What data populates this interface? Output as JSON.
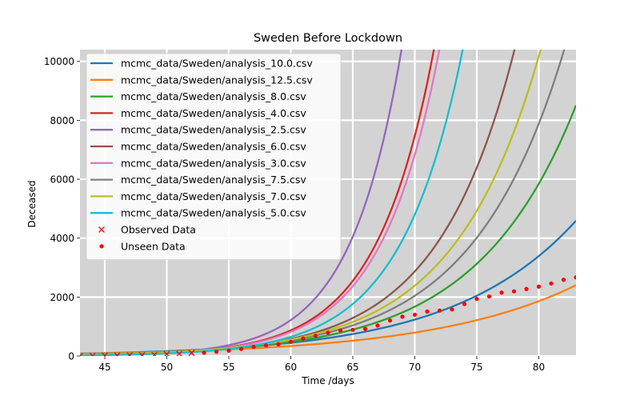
{
  "chart_data": {
    "type": "line",
    "title": "Sweden Before Lockdown",
    "xlabel": "Time /days",
    "ylabel": "Deceased",
    "xlim": [
      43,
      83
    ],
    "ylim": [
      0,
      10400
    ],
    "xticks": [
      45,
      50,
      55,
      60,
      65,
      70,
      75,
      80
    ],
    "yticks": [
      0,
      2000,
      4000,
      6000,
      8000,
      10000
    ],
    "grid": true,
    "background": "#d3d3d3",
    "legend_position": "top-left",
    "series": [
      {
        "name": "mcmc_data/Sweden/analysis_10.0.csv",
        "color": "#1f77b4",
        "k": 0.101
      },
      {
        "name": "mcmc_data/Sweden/analysis_12.5.csv",
        "color": "#ff7f0e",
        "k": 0.085
      },
      {
        "name": "mcmc_data/Sweden/analysis_8.0.csv",
        "color": "#2ca02c",
        "k": 0.125
      },
      {
        "name": "mcmc_data/Sweden/analysis_4.0.csv",
        "color": "#d62728",
        "k": 0.215
      },
      {
        "name": "mcmc_data/Sweden/analysis_2.5.csv",
        "color": "#9467bd",
        "k": 0.24
      },
      {
        "name": "mcmc_data/Sweden/analysis_6.0.csv",
        "color": "#8c564b",
        "k": 0.16
      },
      {
        "name": "mcmc_data/Sweden/analysis_3.0.csv",
        "color": "#e377c2",
        "k": 0.212
      },
      {
        "name": "mcmc_data/Sweden/analysis_7.5.csv",
        "color": "#7f7f7f",
        "k": 0.135
      },
      {
        "name": "mcmc_data/Sweden/analysis_7.0.csv",
        "color": "#bcbd22",
        "k": 0.145
      },
      {
        "name": "mcmc_data/Sweden/analysis_5.0.csv",
        "color": "#17becf",
        "k": 0.2
      }
    ],
    "anchor": {
      "x": 60,
      "y": [
        450,
        340,
        480,
        870,
        1220,
        580,
        820,
        530,
        560,
        650
      ]
    },
    "observed": {
      "name": "Observed Data",
      "color": "#ff0000",
      "marker": "x",
      "x": [
        43,
        44,
        45,
        46,
        47,
        48,
        49,
        50,
        51,
        52
      ],
      "y": [
        5,
        8,
        15,
        20,
        25,
        30,
        40,
        62,
        77,
        105
      ]
    },
    "unseen": {
      "name": "Unseen Data",
      "color": "#ff0000",
      "marker": "dot",
      "x": [
        53,
        54,
        55,
        56,
        57,
        58,
        59,
        60,
        61,
        62,
        63,
        64,
        65,
        66,
        67,
        68,
        69,
        70,
        71,
        72,
        73,
        74,
        75,
        76,
        77,
        78,
        79,
        80,
        81,
        82,
        83
      ],
      "y": [
        110,
        146,
        180,
        239,
        308,
        358,
        401,
        477,
        591,
        687,
        793,
        870,
        887,
        919,
        1033,
        1203,
        1333,
        1400,
        1511,
        1540,
        1580,
        1765,
        1937,
        2021,
        2152,
        2194,
        2274,
        2355,
        2462,
        2586,
        2669
      ]
    }
  }
}
